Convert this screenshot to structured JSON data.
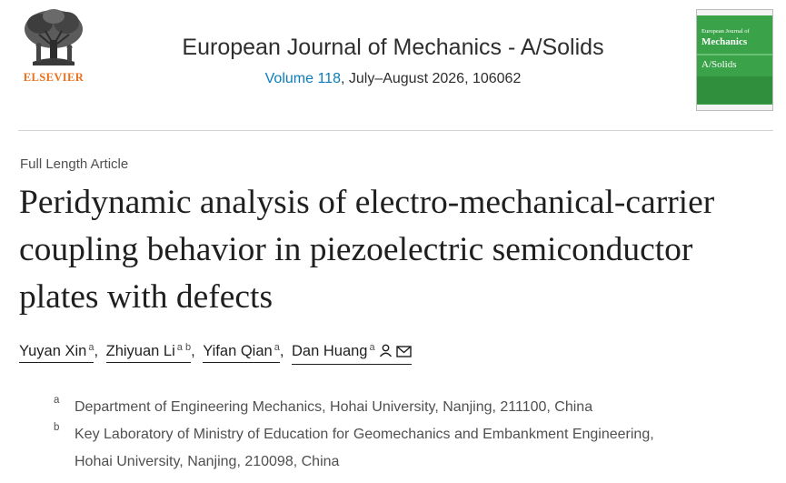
{
  "header": {
    "publisher": "ELSEVIER",
    "journal_title": "European Journal of Mechanics - A/Solids",
    "issue": {
      "volume_link": "Volume 118",
      "rest": ", July–August 2026, 106062"
    },
    "cover": {
      "line1": "European Journal of",
      "line2": "Mechanics",
      "line3": "A/Solids"
    }
  },
  "article": {
    "type": "Full Length Article",
    "title": "Peridynamic analysis of electro-mechanical-carrier coupling behavior in piezoelectric semiconductor plates with defects"
  },
  "authors": [
    {
      "name": "Yuyan Xin",
      "affil": "a"
    },
    {
      "name": "Zhiyuan Li",
      "affil": "a b"
    },
    {
      "name": "Yifan Qian",
      "affil": "a"
    },
    {
      "name": "Dan Huang",
      "affil": "a"
    }
  ],
  "separators": [
    ",",
    ",",
    ","
  ],
  "affiliations": [
    {
      "label": "a",
      "line1": "Department of Engineering Mechanics, Hohai University, Nanjing, 211100, China",
      "line2": ""
    },
    {
      "label": "b",
      "line1": "Key Laboratory of Ministry of Education for Geomechanics and Embankment Engineering,",
      "line2": "Hohai University, Nanjing, 210098, China"
    }
  ],
  "icons": {
    "person": "person-icon",
    "email": "email-icon",
    "logo": "elsevier-tree-logo"
  },
  "colors": {
    "link": "#0c7dbb",
    "elsevier_orange": "#e9711c",
    "cover_green": "#3aa349"
  }
}
